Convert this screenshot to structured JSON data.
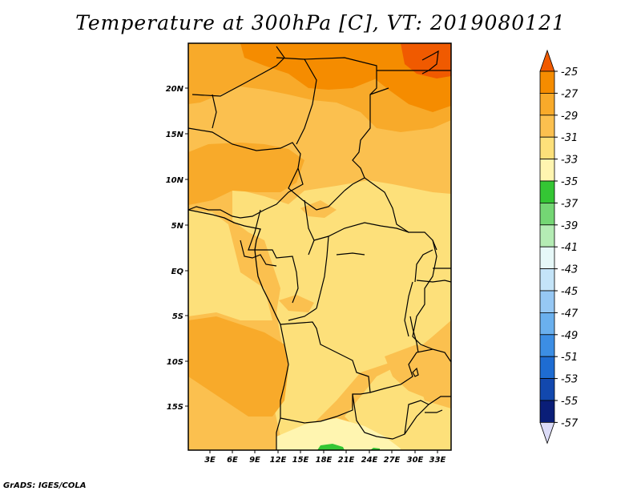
{
  "title": "Temperature at 300hPa [C], VT: 2019080121",
  "footer": "GrADS: IGES/COLA",
  "map": {
    "lon_ticks": [
      "3E",
      "6E",
      "9E",
      "12E",
      "15E",
      "18E",
      "21E",
      "24E",
      "27E",
      "30E",
      "33E"
    ],
    "lat_ticks": [
      "20N",
      "15N",
      "10N",
      "5N",
      "EQ",
      "5S",
      "10S",
      "15S"
    ]
  },
  "colorbar": {
    "labels": [
      "-25",
      "-27",
      "-29",
      "-31",
      "-33",
      "-35",
      "-37",
      "-39",
      "-41",
      "-43",
      "-45",
      "-47",
      "-49",
      "-51",
      "-53",
      "-55",
      "-57"
    ],
    "colors": [
      "#f05a00",
      "#f58c00",
      "#f8aa2a",
      "#fbc04f",
      "#fde07a",
      "#fff5b0",
      "#34c634",
      "#74d674",
      "#b4ecb4",
      "#e6f8f8",
      "#c4e4f8",
      "#96c8f4",
      "#6ab0ee",
      "#3c8ee4",
      "#1e6cd2",
      "#1248ae",
      "#0a1e78",
      "#dcdcf8"
    ]
  },
  "colors": {
    "frame": "#000000",
    "background": "#ffffff"
  }
}
